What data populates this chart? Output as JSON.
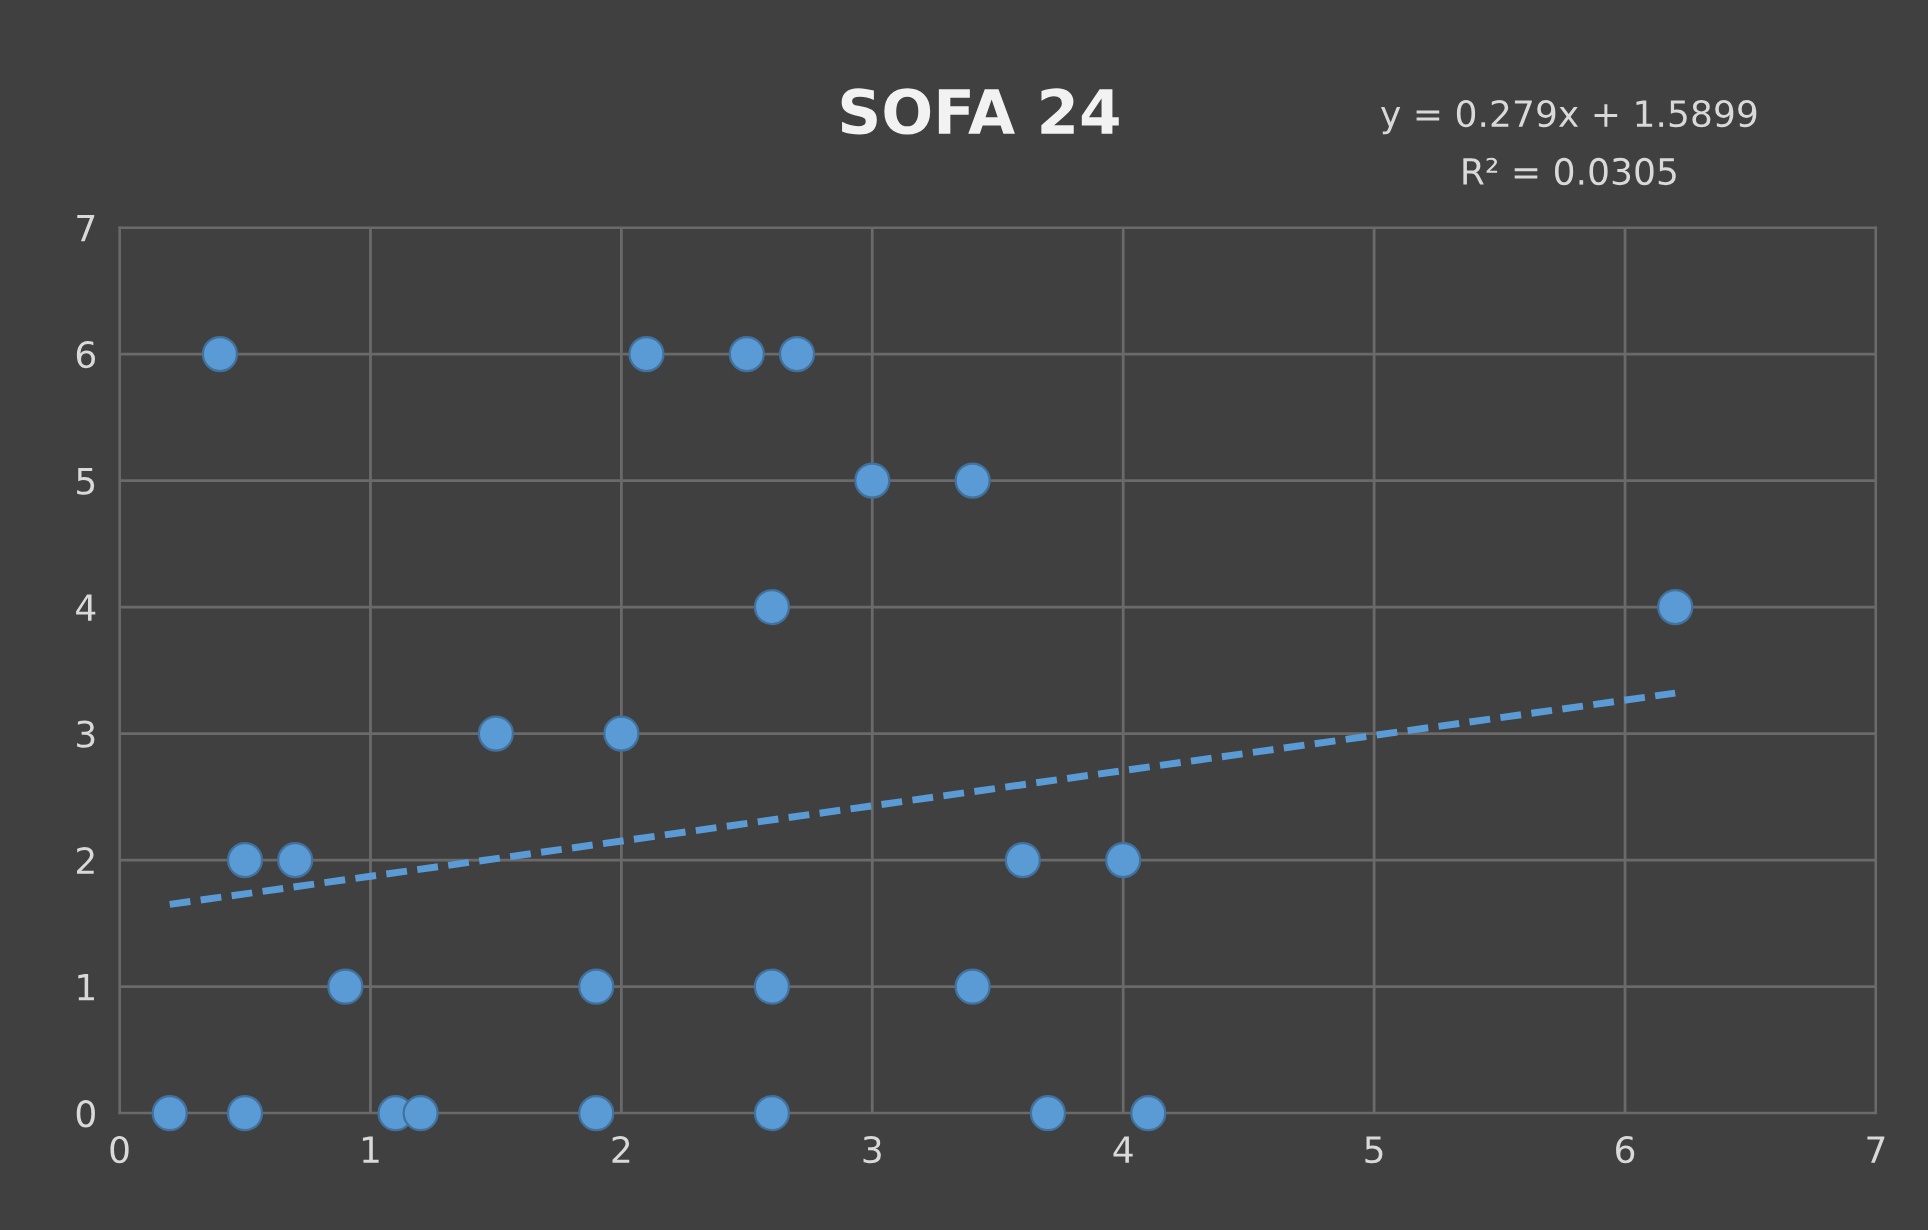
{
  "chart_data": {
    "type": "scatter",
    "title": "SOFA 24",
    "annotations": [
      "y = 0.279x + 1.5899",
      "R² = 0.0305"
    ],
    "xlim": [
      0,
      7
    ],
    "xticks": [
      0,
      1,
      2,
      3,
      4,
      5,
      6,
      7
    ],
    "ylim": [
      0,
      7
    ],
    "yticks": [
      0,
      1,
      2,
      3,
      4,
      5,
      6,
      7
    ],
    "grid": true,
    "marker": "circle",
    "series": [
      {
        "color": "#5b9bd5",
        "x": [
          0.4,
          2.1,
          2.5,
          2.7,
          3.0,
          3.4,
          2.6,
          6.2,
          1.5,
          2.0,
          0.5,
          0.7,
          3.6,
          4.0,
          0.9,
          1.9,
          2.6,
          3.4,
          0.2,
          0.5,
          1.1,
          1.2,
          1.9,
          2.6,
          3.7,
          4.1
        ],
        "values": [
          6,
          6,
          6,
          6,
          5,
          5,
          4,
          4,
          3,
          3,
          2,
          2,
          2,
          2,
          1,
          1,
          1,
          1,
          0,
          0,
          0,
          0,
          0,
          0,
          0,
          0
        ]
      },
      {
        "type": "line",
        "color": "#5b9bd5",
        "line_style": "dashed",
        "marker": "none",
        "x": [
          0.2,
          6.2
        ],
        "values": [
          1.65,
          3.32
        ]
      }
    ]
  }
}
